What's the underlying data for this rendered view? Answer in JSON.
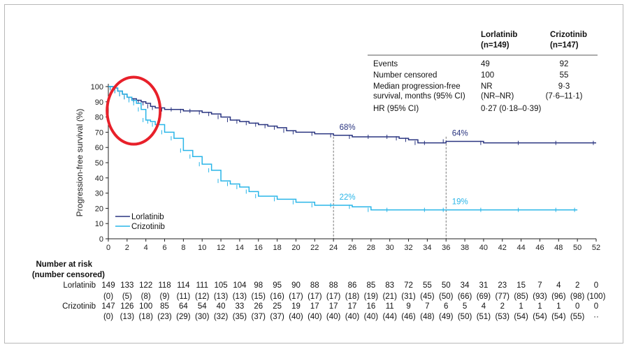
{
  "chart_data": {
    "type": "line",
    "xlabel": "",
    "ylabel": "Progression-free survival (%)",
    "xlim": [
      0,
      52
    ],
    "ylim": [
      0,
      100
    ],
    "xticks": [
      "0",
      "2",
      "4",
      "6",
      "8",
      "10",
      "12",
      "14",
      "16",
      "18",
      "20",
      "22",
      "24",
      "26",
      "28",
      "30",
      "32",
      "34",
      "36",
      "38",
      "40",
      "42",
      "44",
      "46",
      "48",
      "50",
      "52"
    ],
    "yticks": [
      "0",
      "10",
      "20",
      "30",
      "40",
      "50",
      "60",
      "70",
      "80",
      "90",
      "100"
    ],
    "legend": {
      "position": "bottom-left",
      "entries": [
        "Lorlatinib",
        "Crizotinib"
      ]
    },
    "colors": {
      "lorlatinib": "#2a3580",
      "crizotinib": "#29b5e8",
      "highlight": "#e8202a"
    },
    "series": [
      {
        "name": "Lorlatinib",
        "x": [
          0,
          0.5,
          1,
          1.5,
          2,
          2.5,
          3,
          3.5,
          4,
          4.5,
          5,
          6,
          7,
          8,
          9,
          10,
          11,
          12,
          13,
          14,
          15,
          16,
          17,
          18,
          19,
          20,
          22,
          24,
          26,
          28,
          30,
          31,
          32,
          33,
          34,
          36,
          40,
          44,
          48,
          52
        ],
        "y": [
          100,
          99,
          97,
          95,
          93,
          92,
          91,
          90,
          89,
          87,
          86,
          85,
          85,
          84,
          84,
          83,
          82,
          80,
          78,
          77,
          76,
          75,
          74,
          73,
          71,
          70,
          69,
          68,
          67,
          67,
          67,
          66,
          65,
          63,
          63,
          64,
          63,
          63,
          63,
          63
        ]
      },
      {
        "name": "Crizotinib",
        "x": [
          0,
          0.5,
          1,
          1.5,
          2,
          2.5,
          3,
          3.5,
          4,
          4.5,
          5,
          6,
          7,
          8,
          9,
          10,
          11,
          12,
          13,
          14,
          15,
          16,
          18,
          20,
          22,
          24,
          26,
          28,
          30,
          34,
          36,
          40,
          44,
          48,
          50
        ],
        "y": [
          100,
          99,
          97,
          95,
          93,
          91,
          89,
          85,
          78,
          77,
          75,
          70,
          66,
          58,
          54,
          49,
          45,
          38,
          36,
          34,
          31,
          28,
          26,
          24,
          22,
          22,
          21,
          19,
          19,
          19,
          19,
          19,
          19,
          19,
          19
        ]
      }
    ],
    "annotations": [
      {
        "label": "68%",
        "x": 24,
        "y": 68,
        "series": "Lorlatinib"
      },
      {
        "label": "64%",
        "x": 36,
        "y": 64,
        "series": "Lorlatinib"
      },
      {
        "label": "22%",
        "x": 24,
        "y": 22,
        "series": "Crizotinib"
      },
      {
        "label": "19%",
        "x": 36,
        "y": 19,
        "series": "Crizotinib"
      }
    ],
    "highlight_circle": {
      "x_center": 2.7,
      "y_center": 86
    }
  },
  "stats_table": {
    "headers": [
      {
        "line1": "Lorlatinib",
        "line2": "(n=149)"
      },
      {
        "line1": "Crizotinib",
        "line2": "(n=147)"
      }
    ],
    "rows": [
      {
        "label": [
          "Events"
        ],
        "lor": [
          "49"
        ],
        "criz": [
          "92"
        ]
      },
      {
        "label": [
          "Number censored"
        ],
        "lor": [
          "100"
        ],
        "criz": [
          "55"
        ]
      },
      {
        "label": [
          "Median progression-free",
          "survival, months (95% CI)"
        ],
        "lor": [
          "NR",
          "(NR–NR)"
        ],
        "criz": [
          "9·3",
          "(7·6–11·1)"
        ]
      },
      {
        "label": [
          "HR (95% CI)"
        ],
        "lor": [
          "0·27 (0·18–0·39)"
        ],
        "criz": []
      }
    ]
  },
  "risk_table": {
    "title": [
      "Number at risk",
      "(number censored)"
    ],
    "rows": [
      {
        "name": "Lorlatinib",
        "values": [
          "149",
          "133",
          "122",
          "118",
          "114",
          "111",
          "105",
          "104",
          "98",
          "95",
          "90",
          "88",
          "88",
          "86",
          "85",
          "83",
          "72",
          "55",
          "50",
          "34",
          "31",
          "23",
          "15",
          "7",
          "4",
          "2",
          "0"
        ]
      },
      {
        "name": "",
        "values": [
          "(0)",
          "(5)",
          "(8)",
          "(9)",
          "(11)",
          "(12)",
          "(13)",
          "(13)",
          "(15)",
          "(16)",
          "(17)",
          "(17)",
          "(17)",
          "(18)",
          "(19)",
          "(21)",
          "(31)",
          "(45)",
          "(50)",
          "(66)",
          "(69)",
          "(77)",
          "(85)",
          "(93)",
          "(96)",
          "(98)",
          "(100)"
        ]
      },
      {
        "name": "Crizotinib",
        "values": [
          "147",
          "126",
          "100",
          "85",
          "64",
          "54",
          "40",
          "33",
          "26",
          "25",
          "19",
          "17",
          "17",
          "17",
          "16",
          "11",
          "9",
          "7",
          "6",
          "5",
          "4",
          "2",
          "1",
          "1",
          "1",
          "0",
          "0"
        ]
      },
      {
        "name": "",
        "values": [
          "(0)",
          "(13)",
          "(18)",
          "(23)",
          "(29)",
          "(30)",
          "(32)",
          "(35)",
          "(37)",
          "(37)",
          "(40)",
          "(40)",
          "(40)",
          "(40)",
          "(40)",
          "(44)",
          "(46)",
          "(48)",
          "(49)",
          "(50)",
          "(51)",
          "(53)",
          "(54)",
          "(54)",
          "(54)",
          "(55)",
          "··"
        ]
      }
    ]
  }
}
